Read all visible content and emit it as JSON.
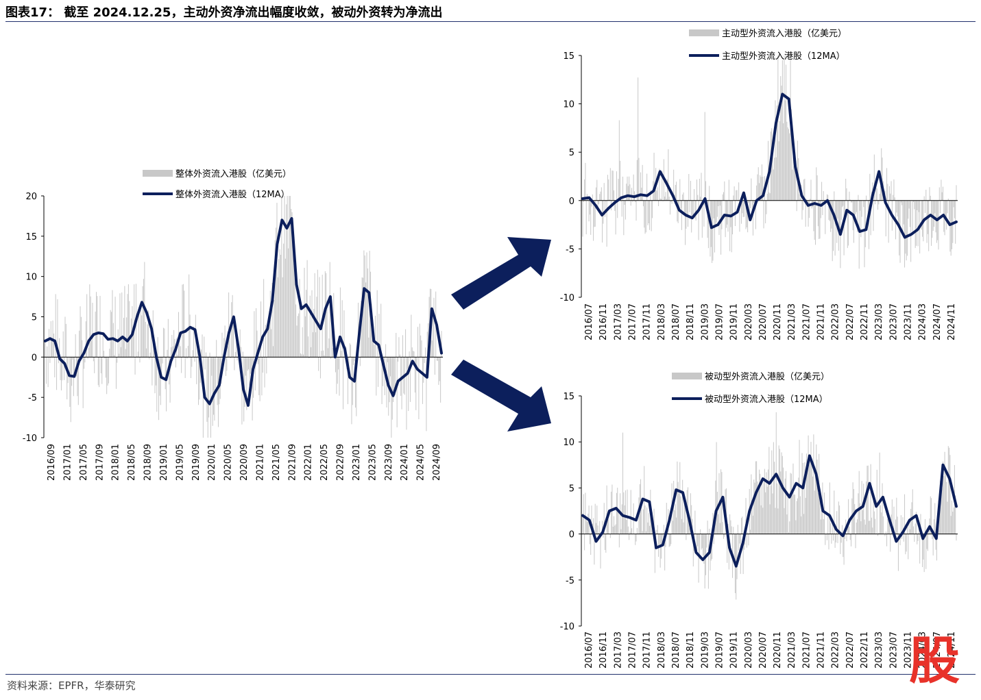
{
  "title": "图表17：  截至 2024.12.25，主动外资净流出幅度收敛，被动外资转为净流出",
  "source": "资料来源：EPFR，华泰研究",
  "colors": {
    "line": "#0c1f5c",
    "bar": "#c8c8c8",
    "rule": "#1f2f6b",
    "arrow": "#0c1f5c"
  },
  "watermark": "股",
  "chart_data": [
    {
      "id": "overall",
      "type": "bar+line",
      "legend": {
        "bar": "整体外资流入港股（亿美元）",
        "line": "整体外资流入港股（12MA）"
      },
      "ylim": [
        -10,
        20
      ],
      "yticks": [
        "20",
        "15",
        "10",
        "5",
        "0",
        "-5",
        "-10"
      ],
      "yticks_values": [
        20,
        15,
        10,
        5,
        0,
        -5,
        -10
      ],
      "xticks": [
        "2016/09",
        "2017/01",
        "2017/05",
        "2017/09",
        "2018/01",
        "2018/05",
        "2018/09",
        "2019/01",
        "2019/05",
        "2019/09",
        "2020/01",
        "2020/05",
        "2020/09",
        "2021/01",
        "2021/05",
        "2021/09",
        "2022/01",
        "2022/05",
        "2022/09",
        "2023/01",
        "2023/05",
        "2023/09",
        "2024/01",
        "2024/05",
        "2024/09"
      ],
      "line_12ma": [
        2.0,
        2.3,
        2.0,
        -0.2,
        -0.8,
        -2.3,
        -2.4,
        -0.5,
        0.5,
        2.0,
        2.8,
        3.0,
        2.9,
        2.2,
        2.3,
        2.0,
        2.5,
        2.0,
        2.8,
        5.0,
        6.8,
        5.5,
        3.5,
        0.0,
        -2.5,
        -2.8,
        -0.5,
        1.0,
        3.0,
        3.2,
        3.7,
        3.4,
        0.0,
        -5.0,
        -5.8,
        -4.5,
        -3.5,
        0.0,
        3.0,
        5.0,
        1.0,
        -4.0,
        -6.0,
        -1.5,
        0.5,
        2.5,
        3.5,
        7.0,
        14.0,
        17.0,
        16.0,
        17.2,
        9.0,
        6.0,
        6.5,
        5.5,
        4.5,
        3.5,
        6.0,
        7.5,
        0.0,
        2.5,
        1.0,
        -2.5,
        -3.0,
        3.0,
        8.5,
        8.0,
        2.0,
        1.5,
        -1.0,
        -3.5,
        -4.8,
        -3.0,
        -2.5,
        -2.0,
        -0.5,
        -1.5,
        -2.0,
        -2.5,
        6.0,
        4.0,
        0.5
      ],
      "bars_source": "weekly flows, approx. ±10 range with peak near 20 in 2021"
    },
    {
      "id": "active",
      "type": "bar+line",
      "legend": {
        "bar": "主动型外资流入港股（亿美元）",
        "line": "主动型外资流入港股（12MA）"
      },
      "ylim": [
        -10,
        15
      ],
      "yticks": [
        "15",
        "10",
        "5",
        "0",
        "-5",
        "-10"
      ],
      "yticks_values": [
        15,
        10,
        5,
        0,
        -5,
        -10
      ],
      "xticks": [
        "2016/07",
        "2016/11",
        "2017/03",
        "2017/07",
        "2017/11",
        "2018/03",
        "2018/07",
        "2018/11",
        "2019/03",
        "2019/07",
        "2019/11",
        "2020/03",
        "2020/07",
        "2020/11",
        "2021/03",
        "2021/07",
        "2021/11",
        "2022/03",
        "2022/07",
        "2022/11",
        "2023/03",
        "2023/07",
        "2023/11",
        "2024/03",
        "2024/07",
        "2024/11"
      ],
      "line_12ma": [
        0.2,
        0.3,
        -0.5,
        -1.5,
        -0.8,
        -0.2,
        0.3,
        0.5,
        0.4,
        0.6,
        0.5,
        1.0,
        3.0,
        1.8,
        0.5,
        -1.0,
        -1.5,
        -1.8,
        -1.0,
        0.2,
        -2.8,
        -2.5,
        -1.5,
        -1.6,
        -1.2,
        0.8,
        -2.0,
        0.0,
        0.5,
        3.0,
        8.0,
        11.0,
        10.5,
        3.5,
        0.5,
        -0.5,
        -0.3,
        -0.5,
        0.0,
        -1.5,
        -3.5,
        -1.0,
        -1.5,
        -3.2,
        -3.0,
        0.5,
        3.0,
        -0.2,
        -1.5,
        -2.5,
        -3.8,
        -3.5,
        -3.0,
        -2.0,
        -1.5,
        -2.0,
        -1.5,
        -2.5,
        -2.2
      ],
      "bars_source": "weekly flows, approx. ±5 range with peak near 15 in 2021"
    },
    {
      "id": "passive",
      "type": "bar+line",
      "legend": {
        "bar": "被动型外资流入港股（亿美元）",
        "line": "被动型外资流入港股（12MA）"
      },
      "ylim": [
        -10,
        15
      ],
      "yticks": [
        "15",
        "10",
        "5",
        "0",
        "-5",
        "-10"
      ],
      "yticks_values": [
        15,
        10,
        5,
        0,
        -5,
        -10
      ],
      "xticks": [
        "2016/07",
        "2016/11",
        "2017/03",
        "2017/07",
        "2017/11",
        "2018/03",
        "2018/07",
        "2018/11",
        "2019/03",
        "2019/07",
        "2019/11",
        "2020/03",
        "2020/07",
        "2020/11",
        "2021/03",
        "2021/07",
        "2021/11",
        "2022/03",
        "2022/07",
        "2022/11",
        "2023/03",
        "2023/07",
        "2023/11",
        "2024/03",
        "2024/07",
        "2024/11"
      ],
      "line_12ma": [
        2.0,
        1.5,
        -0.8,
        0.2,
        2.5,
        2.8,
        2.0,
        1.8,
        1.5,
        3.8,
        3.5,
        -1.5,
        -1.2,
        1.5,
        4.8,
        4.5,
        1.5,
        -2.0,
        -2.8,
        -2.0,
        2.5,
        4.0,
        -1.5,
        -3.5,
        -1.0,
        2.5,
        4.5,
        6.0,
        5.5,
        6.5,
        5.0,
        4.0,
        5.5,
        5.0,
        8.5,
        6.5,
        2.5,
        2.0,
        0.5,
        -0.2,
        1.5,
        2.5,
        3.0,
        5.5,
        3.0,
        4.0,
        1.5,
        -0.8,
        0.2,
        1.5,
        2.0,
        -0.5,
        0.8,
        -0.5,
        7.5,
        6.0,
        3.0
      ],
      "bars_source": "weekly flows, approx. ±5 range with peak near 15"
    }
  ]
}
